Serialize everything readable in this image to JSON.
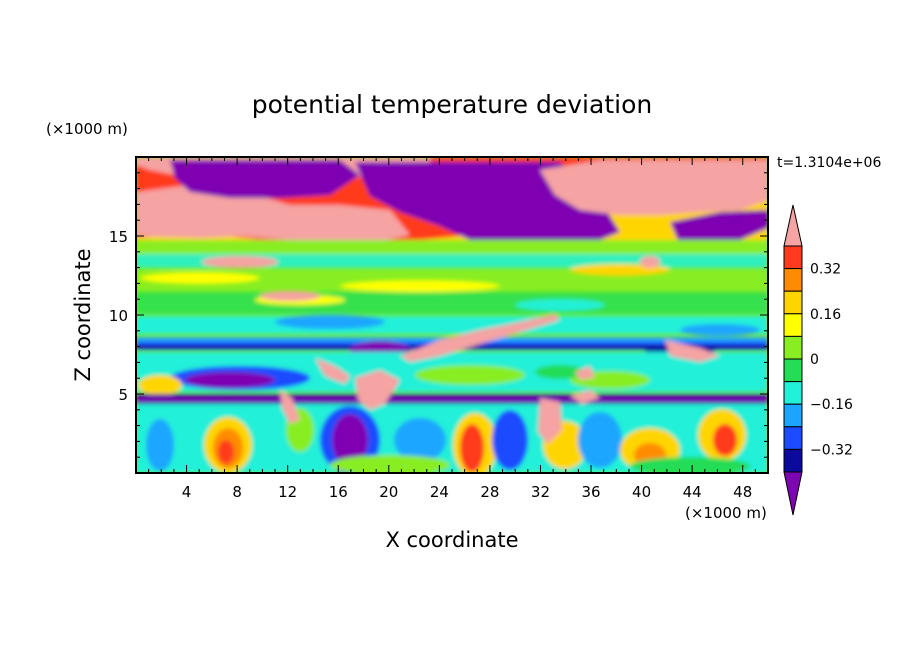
{
  "chart_data": {
    "type": "heatmap",
    "title": "potential temperature deviation",
    "xlabel": "X coordinate",
    "ylabel": "Z coordinate",
    "x_unit": "(×1000 m)",
    "y_unit": "(×1000 m)",
    "time_label": "t=1.3104e+06",
    "xlim": [
      0,
      50
    ],
    "ylim": [
      0,
      20
    ],
    "x_ticks": [
      "4",
      "8",
      "12",
      "16",
      "20",
      "24",
      "28",
      "32",
      "36",
      "40",
      "44",
      "48"
    ],
    "x_tick_values": [
      4,
      8,
      12,
      16,
      20,
      24,
      28,
      32,
      36,
      40,
      44,
      48
    ],
    "y_ticks": [
      "5",
      "10",
      "15"
    ],
    "y_tick_values": [
      5,
      10,
      15
    ],
    "colorbar": {
      "labels": [
        "0.32",
        "0.16",
        "0",
        "-0.16",
        "-0.32"
      ],
      "label_values": [
        0.32,
        0.16,
        0,
        -0.16,
        -0.32
      ],
      "levels": [
        0.4,
        0.32,
        0.24,
        0.16,
        0.08,
        0,
        -0.08,
        -0.16,
        -0.24,
        -0.32,
        -0.4
      ],
      "colors": [
        "#f5a3a3",
        "#ff3a1f",
        "#ff8c00",
        "#ffd500",
        "#ffff00",
        "#88ee22",
        "#22dd55",
        "#22f0d8",
        "#1aa6ff",
        "#1c4cff",
        "#0c0a9c",
        "#7e06b2"
      ],
      "open_ends": true
    },
    "field_description": {
      "upper_layer": "pink maxima and purple minima above 15 km",
      "band_8km": "dark blue negative band near 8 km",
      "band_5km": "dark purple negative band near 5 km",
      "lower_layer": "alternating warm columns and blue columns below 5 km"
    }
  }
}
